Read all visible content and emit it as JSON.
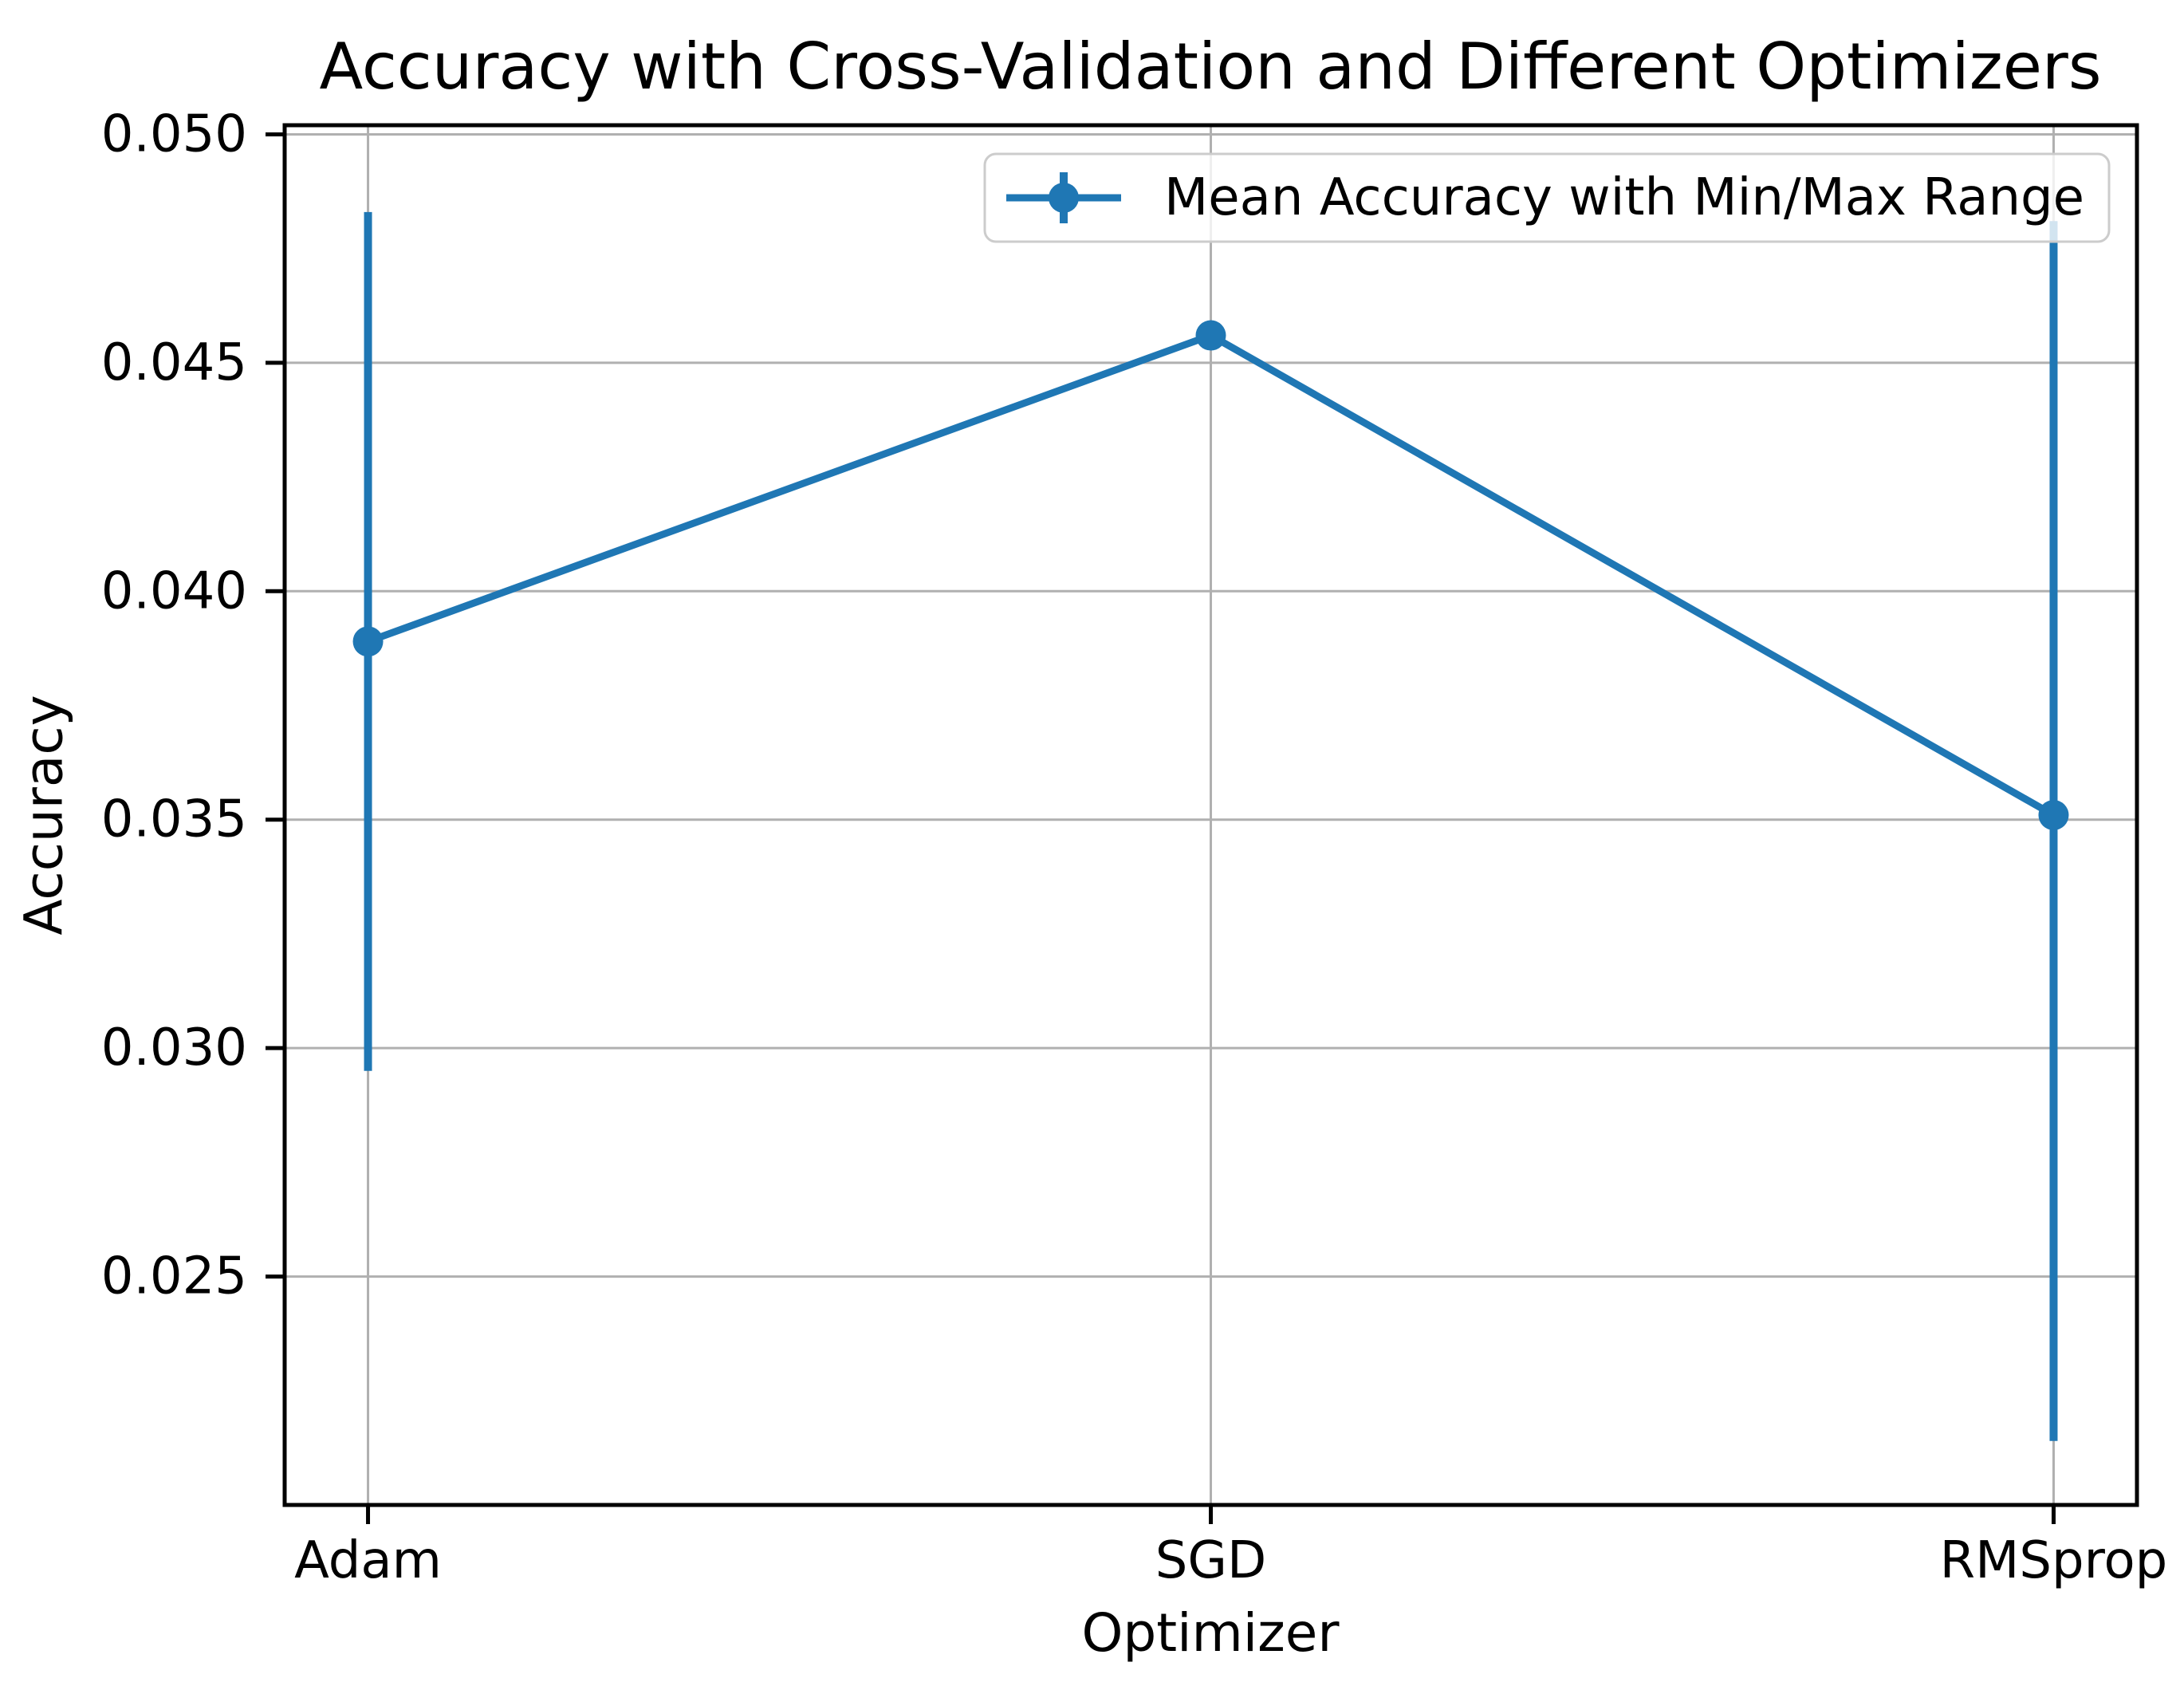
{
  "chart_data": {
    "type": "line",
    "title": "Accuracy with Cross-Validation and Different Optimizers",
    "xlabel": "Optimizer",
    "ylabel": "Accuracy",
    "categories": [
      "Adam",
      "SGD",
      "RMSprop"
    ],
    "series": [
      {
        "name": "Mean Accuracy with Min/Max Range",
        "mean": [
          0.0389,
          0.0456,
          0.0351
        ],
        "min": [
          0.0295,
          0.0456,
          0.0214
        ],
        "max": [
          0.0483,
          0.0456,
          0.0481
        ]
      }
    ],
    "ylim": [
      0.02,
      0.0502
    ],
    "yticks": [
      0.05,
      0.045,
      0.04,
      0.035,
      0.03,
      0.025
    ],
    "ytick_labels": [
      "0.050",
      "0.045",
      "0.040",
      "0.035",
      "0.030",
      "0.025"
    ],
    "grid": true,
    "legend_position": "upper right",
    "marker": "circle"
  },
  "legend": {
    "label": "Mean Accuracy with Min/Max Range"
  },
  "colors": {
    "series": "#1f77b4",
    "grid": "#b0b0b0",
    "spine": "#000000",
    "tick": "#000000",
    "legend_border": "#cccccc",
    "legend_background": "rgba(255,255,255,0.8)",
    "background": "#ffffff",
    "text": "#000000"
  }
}
